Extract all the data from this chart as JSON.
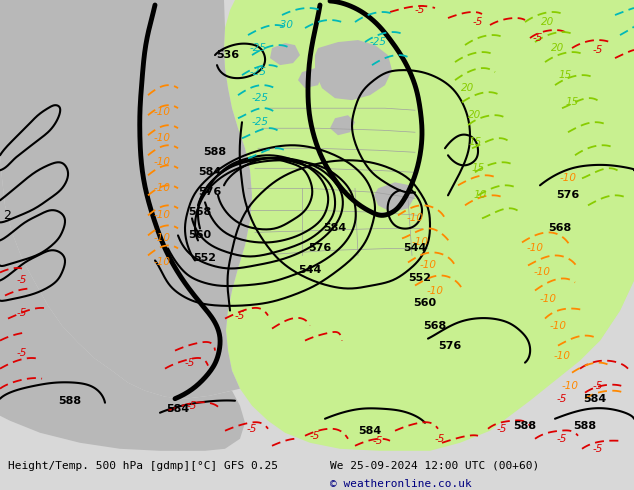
{
  "title_left": "Height/Temp. 500 hPa [gdmp][°C] GFS 0.25",
  "title_right": "We 25-09-2024 12:00 UTC (00+60)",
  "copyright": "© weatheronline.co.uk",
  "bg_color": "#d8d8d8",
  "land_green_color": "#c8f090",
  "land_gray_color": "#b8b8b8",
  "ocean_color": "#d8d8d8",
  "black": "#000000",
  "red": "#dd0000",
  "orange": "#ff8800",
  "cyan": "#00b8b8",
  "lgreen": "#88cc00",
  "navy": "#000080",
  "figsize": [
    6.34,
    4.9
  ],
  "dpi": 100
}
